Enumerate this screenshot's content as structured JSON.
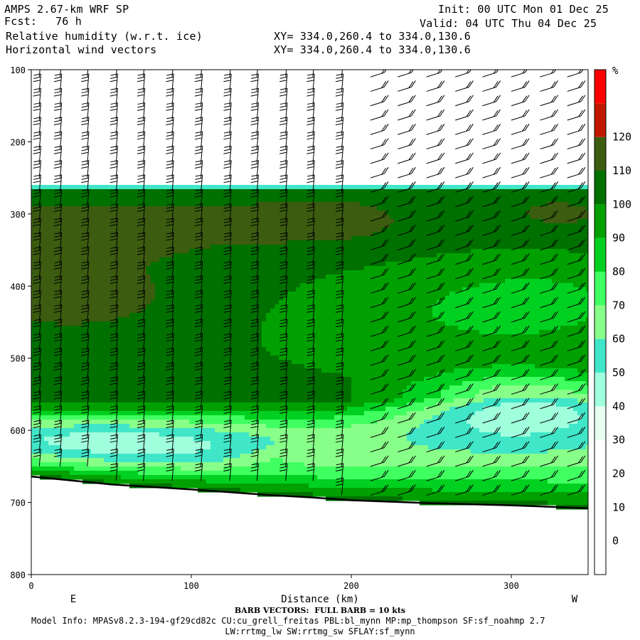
{
  "header": {
    "model": "AMPS 2.67-km WRF SP",
    "fcst_label": "Fcst:",
    "fcst_value": "76 h",
    "field1": "Relative humidity (w.r.t. ice)",
    "field2": "Horizontal wind vectors",
    "init": "Init: 00 UTC Mon 01 Dec 25",
    "valid": "Valid: 04 UTC Thu 04 Dec 25",
    "xy1": "XY= 334.0,260.4 to 334.0,130.6",
    "xy2": "XY= 334.0,260.4 to 334.0,130.6"
  },
  "footer": {
    "barb_note": "BARB VECTORS:  FULL BARB = 10 kts",
    "model_info": "Model Info: MPASv8.2.3-194-gf29cd82c CU:cu_grell_freitas PBL:bl_mynn MP:mp_thompson SF:sf_noahmp 2.7",
    "model_info2": "LW:rrtmg_lw SW:rrtmg_sw SFLAY:sf_mynn"
  },
  "chart_data": {
    "type": "heatmap",
    "title": "Relative humidity (w.r.t. ice)",
    "xlabel": "Distance (km)",
    "ylabel": "",
    "xlim": [
      0,
      348
    ],
    "ylim": [
      800,
      100
    ],
    "x_ticks": [
      0,
      100,
      200,
      300
    ],
    "y_ticks": [
      100,
      200,
      300,
      400,
      500,
      600,
      700,
      800
    ],
    "x_end_labels": {
      "left": "E",
      "right": "W"
    },
    "colorbar": {
      "unit": "%",
      "levels": [
        -10,
        0,
        10,
        20,
        30,
        40,
        50,
        60,
        70,
        80,
        90,
        100,
        110,
        120,
        130
      ],
      "tick_labels": [
        0,
        10,
        20,
        30,
        40,
        50,
        60,
        70,
        80,
        90,
        100,
        110,
        120
      ],
      "colors": [
        "#ffffff",
        "#ffffff",
        "#ffffff",
        "#ffffff",
        "#e6fff0",
        "#a0ffdc",
        "#40e6c8",
        "#88ff88",
        "#40ff60",
        "#00d020",
        "#00a000",
        "#007000",
        "#3c5c10",
        "#c01800",
        "#ff0000"
      ]
    },
    "terrain_pressure": [
      [
        0,
        664
      ],
      [
        50,
        675
      ],
      [
        100,
        682
      ],
      [
        150,
        690
      ],
      [
        175,
        693
      ],
      [
        200,
        697
      ],
      [
        250,
        701
      ],
      [
        300,
        704
      ],
      [
        348,
        708
      ]
    ],
    "barb_station_x": [
      5,
      18,
      35,
      53,
      70,
      88,
      106,
      124,
      141,
      159,
      176,
      194,
      212,
      229,
      247,
      265,
      282,
      300,
      318,
      335
    ],
    "calm_column_x": 173,
    "grid": false,
    "legend": "colorbar right"
  }
}
